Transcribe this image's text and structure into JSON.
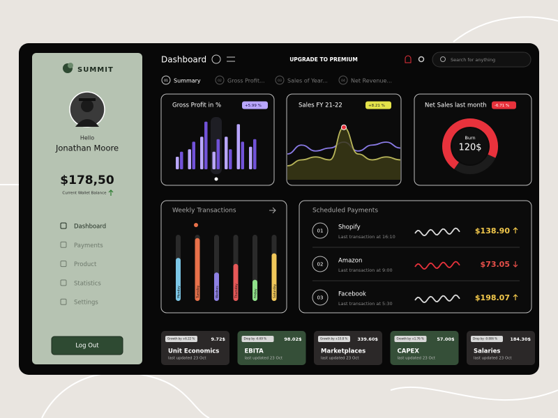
{
  "sidebar": {
    "brand": "SUMMIT",
    "greeting": "Hello",
    "user_name": "Jonathan Moore",
    "balance": "$178,50",
    "balance_label": "Current Wallet Balance",
    "nav": [
      "Dashboard",
      "Payments",
      "Product",
      "Statistics",
      "Settings"
    ],
    "logout": "Log Out"
  },
  "header": {
    "title": "Dashboard",
    "upgrade": "UPGRADE TO PREMIUM",
    "search_placeholder": "Search for anything"
  },
  "tabs": [
    {
      "number": "01",
      "label": "Summary"
    },
    {
      "number": "02",
      "label": "Gross Profit..."
    },
    {
      "number": "03",
      "label": "Sales of Year..."
    },
    {
      "number": "04",
      "label": "Net Revenue..."
    }
  ],
  "cards": {
    "gross_profit": {
      "title": "Gross Profit in %",
      "badge": "+5.99 %",
      "series": [
        {
          "color": "#b9a6ff",
          "values": [
            25,
            40,
            65,
            35,
            65,
            90,
            45
          ]
        },
        {
          "color": "#7152d8",
          "values": [
            35,
            55,
            95,
            60,
            40,
            55,
            60
          ]
        }
      ]
    },
    "sales": {
      "title": "Sales FY 21-22",
      "badge": "+8.21 %",
      "series": [
        {
          "color": "#8a7be6",
          "values": [
            40,
            55,
            45,
            50,
            60,
            45,
            55,
            60,
            50
          ]
        },
        {
          "color": "#b9b65a",
          "values": [
            20,
            30,
            35,
            30,
            85,
            40,
            30,
            35,
            30
          ]
        }
      ]
    },
    "net_sales": {
      "title": "Net Sales last month",
      "badge": "-6.71 %",
      "center_label": "Burn",
      "center_value": "120$"
    }
  },
  "weekly": {
    "title": "Weekly Transactions",
    "categories": [
      "Monday",
      "Tuesday",
      "Wednes",
      "Thursday",
      "Friday",
      "Saturday"
    ],
    "values": [
      65,
      95,
      43,
      56,
      32,
      72
    ],
    "colors": [
      "#7cc6e6",
      "#e8714a",
      "#8d80e2",
      "#e65858",
      "#8fe08a",
      "#f0c75a"
    ]
  },
  "scheduled": {
    "title": "Scheduled Payments",
    "rows": [
      {
        "number": "01",
        "name": "Shopify",
        "subtitle": "Last transaction at 16:10",
        "amount": "$138.90",
        "trend": "up"
      },
      {
        "number": "02",
        "name": "Amazon",
        "subtitle": "Last transaction at 9:00",
        "amount": "$73.05",
        "trend": "down"
      },
      {
        "number": "03",
        "name": "Facebook",
        "subtitle": "Last transaction at 5:30",
        "amount": "$198.07",
        "trend": "up"
      }
    ]
  },
  "summary_cards": [
    {
      "badge": "Growth by +6.22 %",
      "value": "9.72$",
      "title": "Unit Economics",
      "updated": "last updated 23 Oct",
      "color": "#2b2828"
    },
    {
      "badge": "Drop by -6.69 %",
      "value": "98.02$",
      "title": "EBITA",
      "updated": "last updated 23 Oct",
      "color": "#354f38"
    },
    {
      "badge": "Growth by +10.8 %",
      "value": "339.60$",
      "title": "Marketplaces",
      "updated": "last updated 23 Oct",
      "color": "#2b2828"
    },
    {
      "badge": "Growth by +1.76 %",
      "value": "57.00$",
      "title": "CAPEX",
      "updated": "last updated 23 Oct",
      "color": "#354f38"
    },
    {
      "badge": "Drop by -9.806 %",
      "value": "184.30$",
      "title": "Salaries",
      "updated": "last updated 23 Oct",
      "color": "#2b2828"
    }
  ]
}
